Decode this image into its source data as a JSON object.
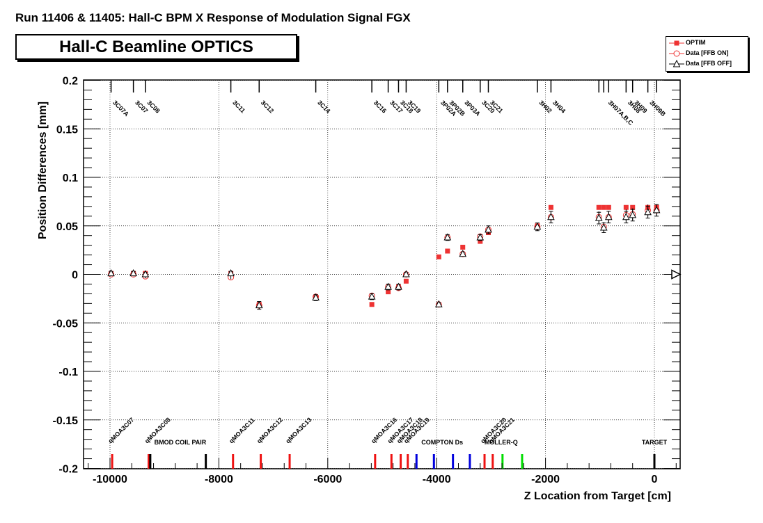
{
  "header": {
    "title": "Run 11406 & 11405: Hall-C BPM X Response of Modulation Signal FGX",
    "optics_label": "Hall-C Beamline OPTICS"
  },
  "legend": {
    "entries": [
      {
        "label": "OPTIM",
        "marker": "filled-square",
        "color": "#ee3333"
      },
      {
        "label": "Data [FFB ON]",
        "marker": "open-circle",
        "color": "#000000"
      },
      {
        "label": "Data [FFB OFF]",
        "marker": "open-triangle",
        "color": "#000000"
      }
    ]
  },
  "chart_data": {
    "type": "scatter",
    "xlabel": "Z Location from Target [cm]",
    "ylabel": "Position Differences [mm]",
    "xlim": [
      -10500,
      500
    ],
    "ylim": [
      -0.2,
      0.2
    ],
    "xticks": [
      -10000,
      -8000,
      -6000,
      -4000,
      -2000,
      0
    ],
    "xtick_labels": [
      "-10000",
      "-8000",
      "-6000",
      "-4000",
      "-2000",
      "0"
    ],
    "yticks": [
      -0.2,
      -0.15,
      -0.1,
      -0.05,
      0,
      0.05,
      0.1,
      0.15,
      0.2
    ],
    "ytick_labels": [
      "-0.2",
      "-0.15",
      "-0.1",
      "-0.05",
      "0",
      "0.05",
      "0.1",
      "0.15",
      "0.2"
    ],
    "grid": true,
    "legend_position": "top-right",
    "colors": {
      "optim": "#ee3333",
      "quad": "#ee1111",
      "compton": "#0000dd",
      "moller": "#00dd00",
      "black": "#000000"
    },
    "bpms": [
      {
        "name": "3C07A",
        "z": -9980
      },
      {
        "name": "3C07",
        "z": -9570
      },
      {
        "name": "3C08",
        "z": -9350
      },
      {
        "name": "3C11",
        "z": -7780
      },
      {
        "name": "3C12",
        "z": -7260
      },
      {
        "name": "3C14",
        "z": -6220
      },
      {
        "name": "3C16",
        "z": -5190
      },
      {
        "name": "3C17",
        "z": -4890
      },
      {
        "name": "3C18",
        "z": -4700
      },
      {
        "name": "3C19",
        "z": -4560
      },
      {
        "name": "3P02A",
        "z": -3960
      },
      {
        "name": "3P02B",
        "z": -3800
      },
      {
        "name": "3P03A",
        "z": -3520
      },
      {
        "name": "3C20",
        "z": -3200
      },
      {
        "name": "3C21",
        "z": -3050
      },
      {
        "name": "3H02",
        "z": -2150
      },
      {
        "name": "3H04",
        "z": -1900
      },
      {
        "name": "3H07A,B,C",
        "z": -880
      },
      {
        "name": "3H08",
        "z": -520
      },
      {
        "name": "3H09",
        "z": -400
      },
      {
        "name": "3H09B",
        "z": -120
      }
    ],
    "bpm_ticks": [
      -9980,
      -9570,
      -9350,
      -7780,
      -7260,
      -6220,
      -5190,
      -4890,
      -4700,
      -4560,
      -3960,
      -3800,
      -3520,
      -3200,
      -3050,
      -2150,
      -1900,
      -1020,
      -930,
      -840,
      -520,
      -400,
      -120,
      40
    ],
    "series": [
      {
        "name": "OPTIM",
        "x": [
          -9980,
          -9570,
          -9350,
          -7780,
          -7260,
          -6220,
          -5190,
          -4890,
          -4700,
          -4560,
          -3960,
          -3800,
          -3520,
          -3200,
          -3050,
          -2150,
          -1900,
          -1020,
          -930,
          -840,
          -520,
          -400,
          -120,
          40
        ],
        "y": [
          0.001,
          0.001,
          0.001,
          0.001,
          -0.031,
          -0.024,
          -0.031,
          -0.018,
          -0.013,
          -0.007,
          0.018,
          0.024,
          0.028,
          0.034,
          0.043,
          0.05,
          0.069,
          0.069,
          0.069,
          0.069,
          0.069,
          0.069,
          0.069,
          0.069
        ]
      },
      {
        "name": "Data [FFB ON]",
        "x": [
          -9980,
          -9570,
          -9350,
          -7780,
          -7260,
          -6220,
          -5190,
          -4890,
          -4700,
          -4560,
          -3960,
          -3800,
          -3520,
          -3200,
          -3050,
          -2150,
          -1900,
          -1020,
          -930,
          -840,
          -520,
          -400,
          -120,
          40
        ],
        "y": [
          0.0,
          0.0,
          -0.002,
          -0.003,
          -0.032,
          -0.023,
          -0.022,
          -0.013,
          -0.014,
          0.0,
          -0.031,
          0.038,
          0.021,
          0.039,
          0.046,
          0.049,
          0.059,
          0.059,
          0.049,
          0.059,
          0.061,
          0.062,
          0.066,
          0.066
        ],
        "err": [
          0.002,
          0.002,
          0.002,
          0.002,
          0.004,
          0.003,
          0.003,
          0.003,
          0.003,
          0.002,
          0.002,
          0.003,
          0.002,
          0.003,
          0.004,
          0.004,
          0.006,
          0.006,
          0.005,
          0.006,
          0.006,
          0.006,
          0.006,
          0.006
        ]
      },
      {
        "name": "Data [FFB OFF]",
        "x": [
          -9980,
          -9570,
          -9350,
          -7780,
          -7260,
          -6220,
          -5190,
          -4890,
          -4700,
          -4560,
          -3960,
          -3800,
          -3520,
          -3200,
          -3050,
          -2150,
          -1900,
          -1020,
          -930,
          -840,
          -520,
          -400,
          -120,
          40
        ],
        "y": [
          0.001,
          0.001,
          0.0,
          0.001,
          -0.032,
          -0.024,
          -0.023,
          -0.013,
          -0.013,
          0.0,
          -0.031,
          0.038,
          0.021,
          0.038,
          0.046,
          0.049,
          0.059,
          0.058,
          0.048,
          0.059,
          0.059,
          0.061,
          0.064,
          0.066
        ],
        "err": [
          0.002,
          0.002,
          0.002,
          0.002,
          0.004,
          0.003,
          0.003,
          0.003,
          0.003,
          0.002,
          0.002,
          0.003,
          0.002,
          0.003,
          0.004,
          0.004,
          0.006,
          0.006,
          0.005,
          0.006,
          0.006,
          0.006,
          0.006,
          0.006
        ]
      }
    ],
    "elements": [
      {
        "name": "qMOA3C07",
        "z": -9960,
        "color": "red",
        "label": true
      },
      {
        "name": "qMOA3C08",
        "z": -9290,
        "color": "red",
        "label": true
      },
      {
        "name": "",
        "z": -9260,
        "color": "black",
        "label": false
      },
      {
        "name": "BMOD COIL PAIR",
        "z": -8240,
        "color": "black",
        "label": true
      },
      {
        "name": "qMOA3C11",
        "z": -7740,
        "color": "red",
        "label": true
      },
      {
        "name": "qMOA3C12",
        "z": -7230,
        "color": "red",
        "label": true
      },
      {
        "name": "qMOA3C13",
        "z": -6700,
        "color": "red",
        "label": true
      },
      {
        "name": "qMOA3C16",
        "z": -5130,
        "color": "red",
        "label": true
      },
      {
        "name": "qMOA3C17",
        "z": -4830,
        "color": "red",
        "label": true
      },
      {
        "name": "qMOA3C18",
        "z": -4660,
        "color": "red",
        "label": true
      },
      {
        "name": "qMOA3C19",
        "z": -4530,
        "color": "red",
        "label": true
      },
      {
        "name": "",
        "z": -4370,
        "color": "blue",
        "label": false
      },
      {
        "name": "COMPTON Ds",
        "z": -4050,
        "color": "blue",
        "label": true
      },
      {
        "name": "",
        "z": -3700,
        "color": "blue",
        "label": false
      },
      {
        "name": "",
        "z": -3390,
        "color": "blue",
        "label": false
      },
      {
        "name": "qMOA3C20",
        "z": -3120,
        "color": "red",
        "label": true
      },
      {
        "name": "qMOA3C21",
        "z": -2970,
        "color": "red",
        "label": true
      },
      {
        "name": "MOLLER-Q",
        "z": -2790,
        "color": "green",
        "label": true
      },
      {
        "name": "",
        "z": -2430,
        "color": "green",
        "label": false
      },
      {
        "name": "TARGET",
        "z": 0,
        "color": "black",
        "label": true
      }
    ]
  }
}
